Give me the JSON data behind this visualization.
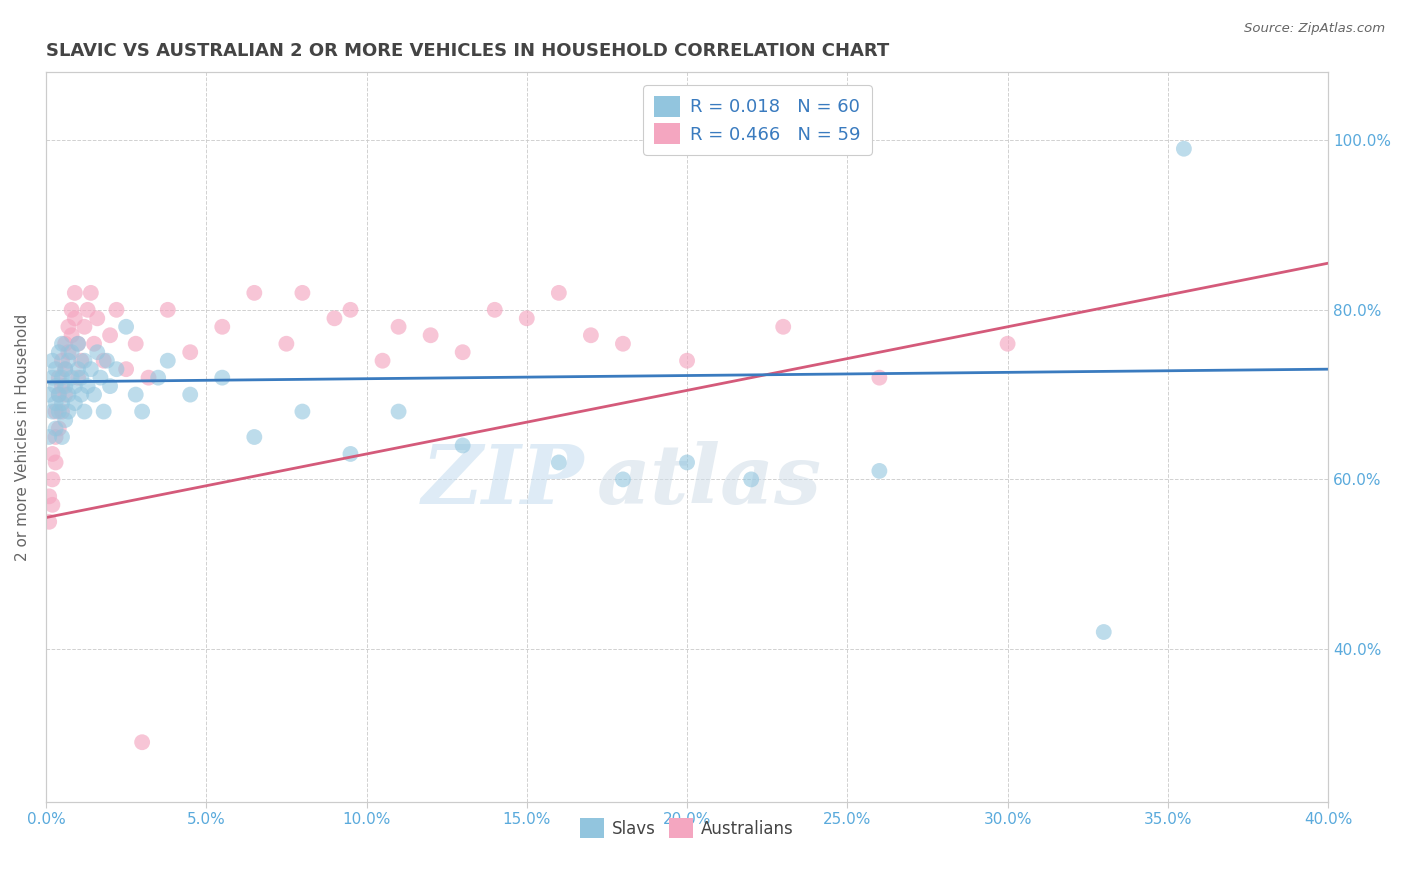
{
  "title": "SLAVIC VS AUSTRALIAN 2 OR MORE VEHICLES IN HOUSEHOLD CORRELATION CHART",
  "source_text": "Source: ZipAtlas.com",
  "ylabel": "2 or more Vehicles in Household",
  "legend_labels": [
    "Slavs",
    "Australians"
  ],
  "legend_r": [
    0.018,
    0.466
  ],
  "legend_n": [
    60,
    59
  ],
  "blue_color": "#92c5de",
  "pink_color": "#f4a6c0",
  "blue_line_color": "#3a7bbf",
  "pink_line_color": "#d45a7a",
  "title_color": "#444444",
  "axis_tick_color": "#5aaadc",
  "legend_r_color": "#3a7bbf",
  "watermark_zip": "ZIP",
  "watermark_atlas": "atlas",
  "xmin": 0.0,
  "xmax": 0.4,
  "ymin": 0.22,
  "ymax": 1.08,
  "yticks": [
    0.4,
    0.6,
    0.8,
    1.0
  ],
  "xtick_step": 0.05,
  "background_color": "#ffffff",
  "grid_color": "#cccccc",
  "figsize": [
    14.06,
    8.92
  ],
  "dpi": 100,
  "slavs_x": [
    0.001,
    0.001,
    0.002,
    0.002,
    0.002,
    0.003,
    0.003,
    0.003,
    0.003,
    0.004,
    0.004,
    0.004,
    0.005,
    0.005,
    0.005,
    0.005,
    0.006,
    0.006,
    0.006,
    0.007,
    0.007,
    0.007,
    0.008,
    0.008,
    0.009,
    0.009,
    0.01,
    0.01,
    0.011,
    0.011,
    0.012,
    0.012,
    0.013,
    0.014,
    0.015,
    0.016,
    0.017,
    0.018,
    0.019,
    0.02,
    0.022,
    0.025,
    0.028,
    0.03,
    0.035,
    0.038,
    0.045,
    0.055,
    0.065,
    0.08,
    0.095,
    0.11,
    0.13,
    0.16,
    0.18,
    0.2,
    0.22,
    0.26,
    0.33,
    0.355
  ],
  "slavs_y": [
    0.7,
    0.65,
    0.72,
    0.68,
    0.74,
    0.71,
    0.66,
    0.73,
    0.69,
    0.75,
    0.7,
    0.68,
    0.72,
    0.76,
    0.69,
    0.65,
    0.73,
    0.71,
    0.67,
    0.74,
    0.7,
    0.68,
    0.72,
    0.75,
    0.71,
    0.69,
    0.73,
    0.76,
    0.7,
    0.72,
    0.68,
    0.74,
    0.71,
    0.73,
    0.7,
    0.75,
    0.72,
    0.68,
    0.74,
    0.71,
    0.73,
    0.78,
    0.7,
    0.68,
    0.72,
    0.74,
    0.7,
    0.72,
    0.65,
    0.68,
    0.63,
    0.68,
    0.64,
    0.62,
    0.6,
    0.62,
    0.6,
    0.61,
    0.42,
    0.99
  ],
  "australians_x": [
    0.001,
    0.001,
    0.002,
    0.002,
    0.002,
    0.003,
    0.003,
    0.003,
    0.004,
    0.004,
    0.004,
    0.005,
    0.005,
    0.005,
    0.006,
    0.006,
    0.006,
    0.007,
    0.007,
    0.008,
    0.008,
    0.009,
    0.009,
    0.01,
    0.01,
    0.011,
    0.012,
    0.013,
    0.014,
    0.015,
    0.016,
    0.018,
    0.02,
    0.022,
    0.025,
    0.028,
    0.032,
    0.038,
    0.045,
    0.055,
    0.065,
    0.075,
    0.09,
    0.105,
    0.12,
    0.14,
    0.16,
    0.18,
    0.08,
    0.095,
    0.11,
    0.13,
    0.15,
    0.17,
    0.2,
    0.23,
    0.26,
    0.3,
    0.03
  ],
  "australians_y": [
    0.58,
    0.55,
    0.6,
    0.63,
    0.57,
    0.65,
    0.62,
    0.68,
    0.7,
    0.66,
    0.72,
    0.68,
    0.74,
    0.71,
    0.73,
    0.76,
    0.7,
    0.78,
    0.75,
    0.8,
    0.77,
    0.82,
    0.79,
    0.72,
    0.76,
    0.74,
    0.78,
    0.8,
    0.82,
    0.76,
    0.79,
    0.74,
    0.77,
    0.8,
    0.73,
    0.76,
    0.72,
    0.8,
    0.75,
    0.78,
    0.82,
    0.76,
    0.79,
    0.74,
    0.77,
    0.8,
    0.82,
    0.76,
    0.82,
    0.8,
    0.78,
    0.75,
    0.79,
    0.77,
    0.74,
    0.78,
    0.72,
    0.76,
    0.29
  ]
}
